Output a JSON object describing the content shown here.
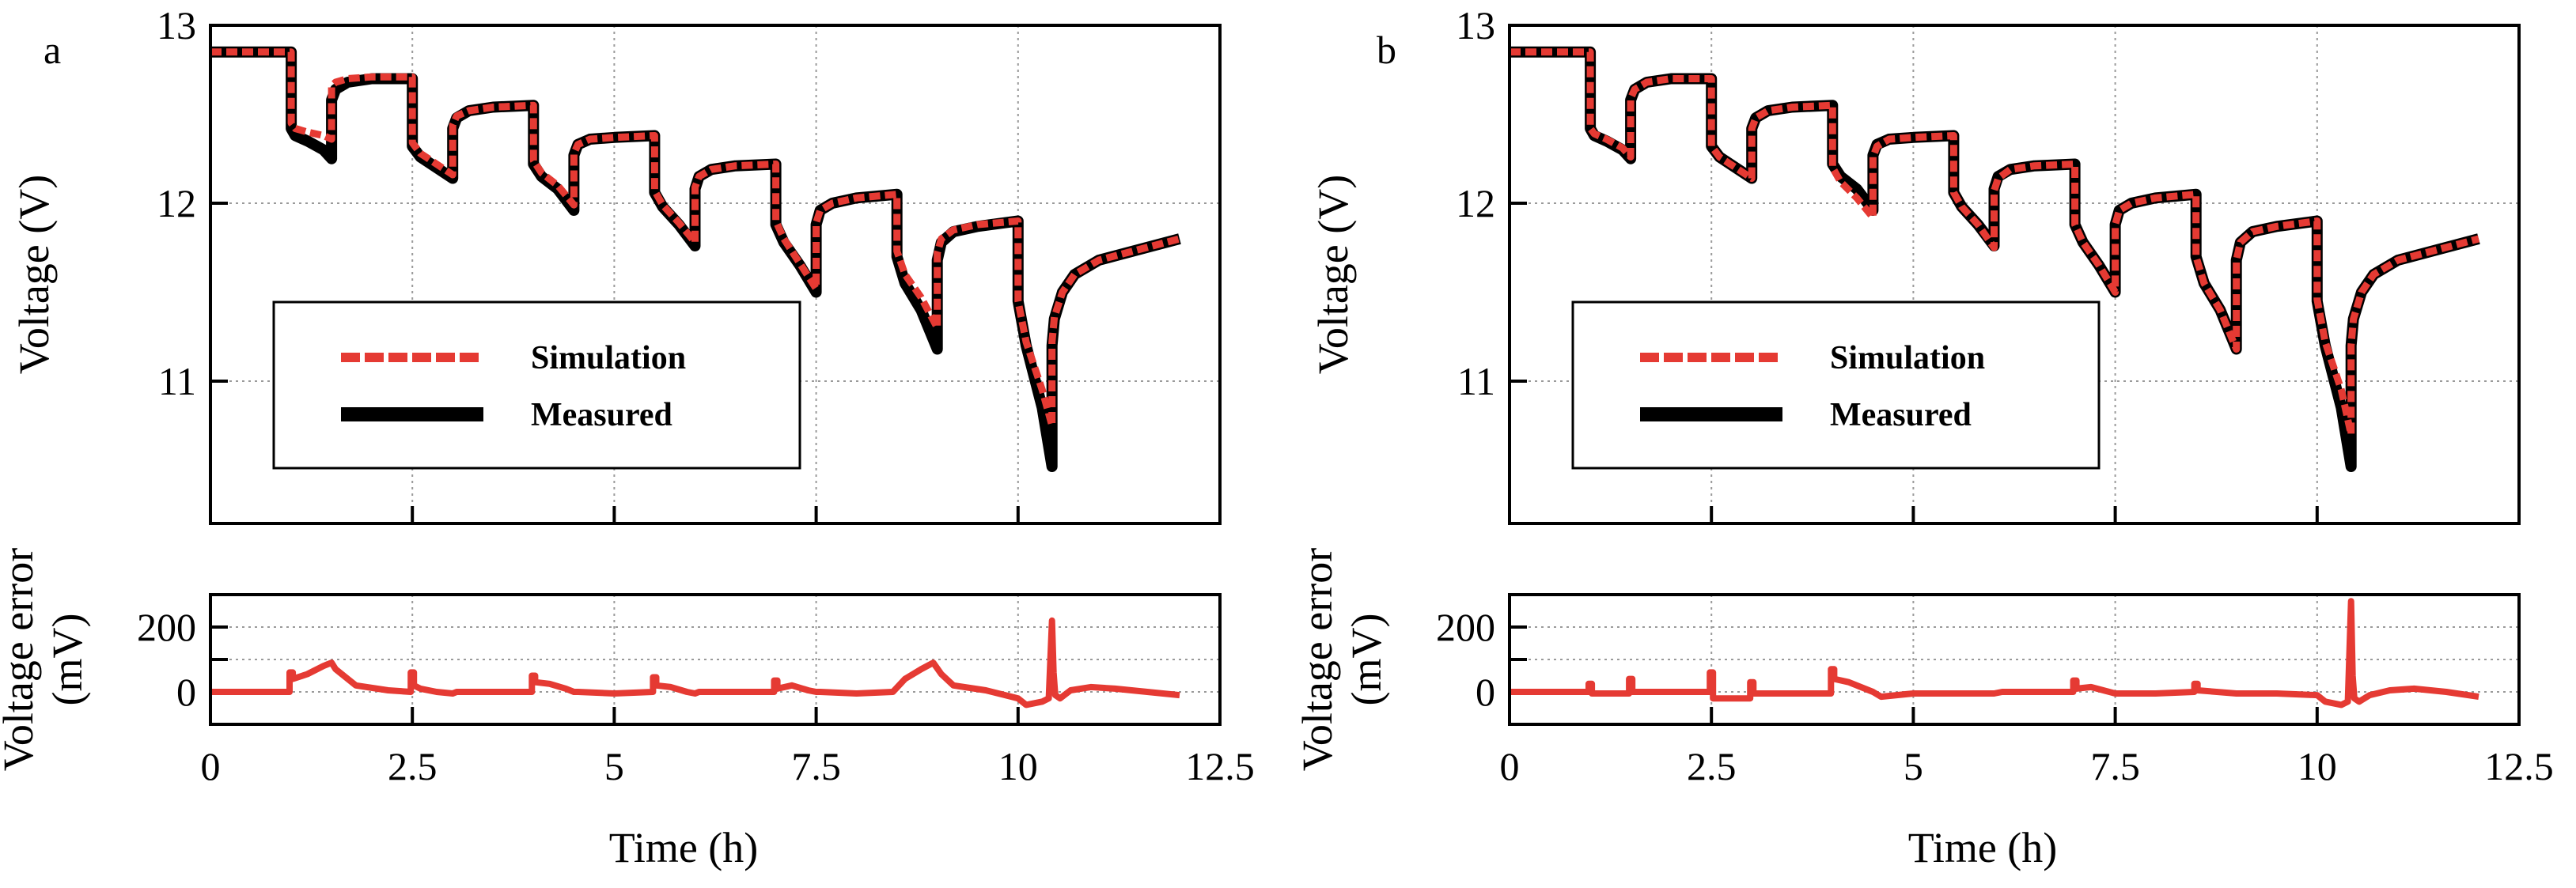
{
  "chart_data": [
    {
      "type": "line",
      "panel_label": "a",
      "xlabel": "Time (h)",
      "xlim": [
        0,
        12.5
      ],
      "xticks": [
        "0",
        "2.5",
        "5",
        "7.5",
        "10",
        "12.5"
      ],
      "voltage_panel": {
        "ylabel": "Voltage (V)",
        "ylim": [
          10.2,
          13
        ],
        "yticks": [
          "11",
          "12",
          "13"
        ],
        "legend": {
          "position": "lower-left",
          "entries": [
            "Simulation",
            "Measured"
          ]
        },
        "series": [
          {
            "name": "Measured",
            "color": "#000000",
            "style": "solid",
            "x": [
              0,
              1.0,
              1.0,
              1.05,
              1.2,
              1.4,
              1.5,
              1.5,
              1.55,
              1.7,
              2.0,
              2.5,
              2.5,
              2.6,
              2.8,
              3.0,
              3.0,
              3.05,
              3.2,
              3.5,
              4.0,
              4.0,
              4.1,
              4.3,
              4.5,
              4.5,
              4.55,
              4.7,
              5.0,
              5.5,
              5.5,
              5.6,
              5.8,
              6.0,
              6.0,
              6.05,
              6.2,
              6.5,
              7.0,
              7.0,
              7.1,
              7.3,
              7.5,
              7.5,
              7.55,
              7.7,
              8.0,
              8.5,
              8.5,
              8.6,
              8.8,
              9.0,
              9.0,
              9.05,
              9.2,
              9.5,
              10.0,
              10.0,
              10.1,
              10.3,
              10.42,
              10.42,
              10.45,
              10.55,
              10.7,
              11.0,
              11.5,
              12.0
            ],
            "y": [
              12.85,
              12.85,
              12.42,
              12.38,
              12.35,
              12.3,
              12.25,
              12.58,
              12.64,
              12.68,
              12.7,
              12.7,
              12.32,
              12.26,
              12.2,
              12.14,
              12.42,
              12.48,
              12.52,
              12.54,
              12.55,
              12.22,
              12.15,
              12.08,
              11.96,
              12.27,
              12.33,
              12.36,
              12.37,
              12.38,
              12.06,
              11.98,
              11.88,
              11.76,
              12.08,
              12.15,
              12.19,
              12.21,
              12.22,
              11.88,
              11.78,
              11.65,
              11.5,
              11.88,
              11.96,
              12.0,
              12.03,
              12.05,
              11.7,
              11.55,
              11.4,
              11.18,
              11.68,
              11.78,
              11.84,
              11.87,
              11.9,
              11.45,
              11.2,
              10.85,
              10.52,
              11.2,
              11.35,
              11.5,
              11.6,
              11.68,
              11.74,
              11.8
            ]
          },
          {
            "name": "Simulation",
            "color": "#e53a33",
            "style": "dashed",
            "x": [
              0,
              1.0,
              1.0,
              1.05,
              1.2,
              1.4,
              1.5,
              1.5,
              1.55,
              1.7,
              2.0,
              2.5,
              2.5,
              2.6,
              2.8,
              3.0,
              3.0,
              3.05,
              3.2,
              3.5,
              4.0,
              4.0,
              4.1,
              4.3,
              4.5,
              4.5,
              4.55,
              4.7,
              5.0,
              5.5,
              5.5,
              5.6,
              5.8,
              6.0,
              6.0,
              6.05,
              6.2,
              6.5,
              7.0,
              7.0,
              7.1,
              7.3,
              7.5,
              7.5,
              7.55,
              7.7,
              8.0,
              8.5,
              8.5,
              8.6,
              8.8,
              9.0,
              9.0,
              9.05,
              9.2,
              9.5,
              10.0,
              10.0,
              10.1,
              10.3,
              10.42,
              10.42,
              10.45,
              10.55,
              10.7,
              11.0,
              11.5,
              12.0
            ],
            "y": [
              12.85,
              12.85,
              12.45,
              12.42,
              12.4,
              12.38,
              12.36,
              12.66,
              12.68,
              12.7,
              12.71,
              12.71,
              12.34,
              12.28,
              12.22,
              12.16,
              12.44,
              12.49,
              12.52,
              12.54,
              12.55,
              12.24,
              12.17,
              12.1,
              11.99,
              12.28,
              12.33,
              12.36,
              12.37,
              12.38,
              12.07,
              11.99,
              11.89,
              11.78,
              12.09,
              12.15,
              12.19,
              12.21,
              12.22,
              11.9,
              11.8,
              11.66,
              11.52,
              11.89,
              11.96,
              12.0,
              12.03,
              12.05,
              11.73,
              11.6,
              11.47,
              11.3,
              11.72,
              11.8,
              11.85,
              11.88,
              11.9,
              11.45,
              11.22,
              10.95,
              10.75,
              11.22,
              11.36,
              11.5,
              11.6,
              11.68,
              11.74,
              11.8
            ]
          }
        ]
      },
      "error_panel": {
        "ylabel_line1": "Voltage error",
        "ylabel_line2": "(mV)",
        "ylim": [
          -100,
          300
        ],
        "yticks": [
          "0",
          "200"
        ],
        "series": [
          {
            "name": "Voltage error",
            "color": "#e53a33",
            "x": [
              0,
              0.98,
              0.98,
              1.02,
              1.02,
              1.2,
              1.4,
              1.5,
              1.55,
              1.8,
              2.2,
              2.48,
              2.48,
              2.52,
              2.52,
              2.6,
              2.8,
              3.0,
              3.05,
              3.5,
              3.98,
              3.98,
              4.02,
              4.02,
              4.2,
              4.4,
              4.5,
              4.55,
              5.0,
              5.48,
              5.48,
              5.52,
              5.52,
              5.7,
              5.9,
              6.0,
              6.05,
              6.5,
              6.98,
              6.98,
              7.02,
              7.02,
              7.2,
              7.4,
              7.5,
              7.55,
              8.0,
              8.45,
              8.6,
              8.8,
              8.95,
              9.05,
              9.2,
              9.6,
              10.0,
              10.1,
              10.3,
              10.38,
              10.42,
              10.44,
              10.46,
              10.52,
              10.65,
              10.9,
              11.2,
              11.6,
              12.0
            ],
            "y": [
              0,
              0,
              60,
              60,
              40,
              55,
              80,
              90,
              70,
              20,
              5,
              0,
              60,
              60,
              20,
              10,
              0,
              -5,
              0,
              0,
              0,
              50,
              50,
              30,
              25,
              10,
              0,
              0,
              -5,
              0,
              45,
              45,
              20,
              15,
              0,
              -5,
              0,
              0,
              0,
              35,
              35,
              10,
              20,
              5,
              0,
              0,
              -5,
              0,
              40,
              70,
              90,
              55,
              20,
              5,
              -20,
              -40,
              -30,
              -20,
              220,
              60,
              -10,
              -20,
              5,
              15,
              10,
              0,
              -10
            ]
          }
        ]
      }
    },
    {
      "type": "line",
      "panel_label": "b",
      "xlabel": "Time (h)",
      "xlim": [
        0,
        12.5
      ],
      "xticks": [
        "0",
        "2.5",
        "5",
        "7.5",
        "10",
        "12.5"
      ],
      "voltage_panel": {
        "ylabel": "Voltage (V)",
        "ylim": [
          10.2,
          13
        ],
        "yticks": [
          "11",
          "12",
          "13"
        ],
        "legend": {
          "position": "lower-left",
          "entries": [
            "Simulation",
            "Measured"
          ]
        },
        "series": [
          {
            "name": "Measured",
            "color": "#000000",
            "style": "solid",
            "x": [
              0,
              1.0,
              1.0,
              1.05,
              1.2,
              1.4,
              1.5,
              1.5,
              1.55,
              1.7,
              2.0,
              2.5,
              2.5,
              2.6,
              2.8,
              3.0,
              3.0,
              3.05,
              3.2,
              3.5,
              4.0,
              4.0,
              4.1,
              4.3,
              4.5,
              4.5,
              4.55,
              4.7,
              5.0,
              5.5,
              5.5,
              5.6,
              5.8,
              6.0,
              6.0,
              6.05,
              6.2,
              6.5,
              7.0,
              7.0,
              7.1,
              7.3,
              7.5,
              7.5,
              7.55,
              7.7,
              8.0,
              8.5,
              8.5,
              8.6,
              8.8,
              9.0,
              9.0,
              9.05,
              9.2,
              9.5,
              10.0,
              10.0,
              10.1,
              10.3,
              10.42,
              10.42,
              10.45,
              10.55,
              10.7,
              11.0,
              11.5,
              12.0
            ],
            "y": [
              12.85,
              12.85,
              12.42,
              12.38,
              12.35,
              12.3,
              12.25,
              12.58,
              12.64,
              12.68,
              12.7,
              12.7,
              12.32,
              12.26,
              12.2,
              12.14,
              12.42,
              12.48,
              12.52,
              12.54,
              12.55,
              12.22,
              12.15,
              12.08,
              11.96,
              12.27,
              12.33,
              12.36,
              12.37,
              12.38,
              12.06,
              11.98,
              11.88,
              11.76,
              12.08,
              12.15,
              12.19,
              12.21,
              12.22,
              11.88,
              11.78,
              11.65,
              11.5,
              11.88,
              11.96,
              12.0,
              12.03,
              12.05,
              11.7,
              11.55,
              11.4,
              11.18,
              11.68,
              11.78,
              11.84,
              11.87,
              11.9,
              11.45,
              11.2,
              10.85,
              10.52,
              11.2,
              11.35,
              11.5,
              11.6,
              11.68,
              11.74,
              11.8
            ]
          },
          {
            "name": "Simulation",
            "color": "#e53a33",
            "style": "dashed",
            "x": [
              0,
              1.0,
              1.0,
              1.05,
              1.2,
              1.4,
              1.5,
              1.5,
              1.55,
              1.7,
              2.0,
              2.5,
              2.5,
              2.6,
              2.8,
              3.0,
              3.0,
              3.05,
              3.2,
              3.5,
              4.0,
              4.0,
              4.1,
              4.3,
              4.5,
              4.5,
              4.55,
              4.7,
              5.0,
              5.5,
              5.5,
              5.6,
              5.8,
              6.0,
              6.0,
              6.05,
              6.2,
              6.5,
              7.0,
              7.0,
              7.1,
              7.3,
              7.5,
              7.5,
              7.55,
              7.7,
              8.0,
              8.5,
              8.5,
              8.6,
              8.8,
              9.0,
              9.0,
              9.05,
              9.2,
              9.5,
              10.0,
              10.0,
              10.1,
              10.3,
              10.42,
              10.42,
              10.45,
              10.55,
              10.7,
              11.0,
              11.5,
              12.0
            ],
            "y": [
              12.85,
              12.85,
              12.42,
              12.39,
              12.36,
              12.31,
              12.26,
              12.59,
              12.64,
              12.68,
              12.7,
              12.7,
              12.32,
              12.26,
              12.2,
              12.14,
              12.42,
              12.48,
              12.52,
              12.54,
              12.55,
              12.2,
              12.12,
              12.03,
              11.92,
              12.26,
              12.32,
              12.36,
              12.37,
              12.38,
              12.06,
              11.98,
              11.88,
              11.75,
              12.07,
              12.14,
              12.19,
              12.21,
              12.22,
              11.88,
              11.78,
              11.65,
              11.5,
              11.88,
              11.96,
              12.0,
              12.03,
              12.05,
              11.7,
              11.55,
              11.4,
              11.18,
              11.68,
              11.78,
              11.84,
              11.87,
              11.9,
              11.46,
              11.22,
              10.95,
              10.7,
              11.2,
              11.35,
              11.5,
              11.6,
              11.68,
              11.74,
              11.8
            ]
          }
        ]
      },
      "error_panel": {
        "ylabel_line1": "Voltage error",
        "ylabel_line2": "(mV)",
        "ylim": [
          -100,
          300
        ],
        "yticks": [
          "0",
          "200"
        ],
        "series": [
          {
            "name": "Voltage error",
            "color": "#e53a33",
            "x": [
              0,
              0.98,
              0.98,
              1.02,
              1.02,
              1.48,
              1.48,
              1.52,
              1.52,
              2.48,
              2.48,
              2.52,
              2.52,
              2.98,
              2.98,
              3.02,
              3.02,
              3.98,
              3.98,
              4.02,
              4.02,
              4.2,
              4.5,
              4.6,
              5.0,
              6.0,
              6.1,
              6.98,
              6.98,
              7.02,
              7.02,
              7.2,
              7.5,
              8.0,
              8.48,
              8.48,
              8.52,
              8.52,
              9.0,
              9.5,
              10.0,
              10.1,
              10.3,
              10.38,
              10.42,
              10.44,
              10.46,
              10.52,
              10.65,
              10.9,
              11.2,
              11.6,
              12.0
            ],
            "y": [
              0,
              0,
              25,
              25,
              -5,
              -5,
              40,
              40,
              0,
              0,
              60,
              60,
              -20,
              -20,
              30,
              30,
              -5,
              -5,
              70,
              70,
              40,
              30,
              0,
              -15,
              -5,
              -5,
              0,
              0,
              35,
              35,
              10,
              15,
              -5,
              -5,
              0,
              25,
              25,
              5,
              -5,
              -5,
              -10,
              -30,
              -40,
              -30,
              280,
              50,
              -20,
              -30,
              -10,
              5,
              10,
              0,
              -15
            ]
          }
        ]
      }
    }
  ]
}
